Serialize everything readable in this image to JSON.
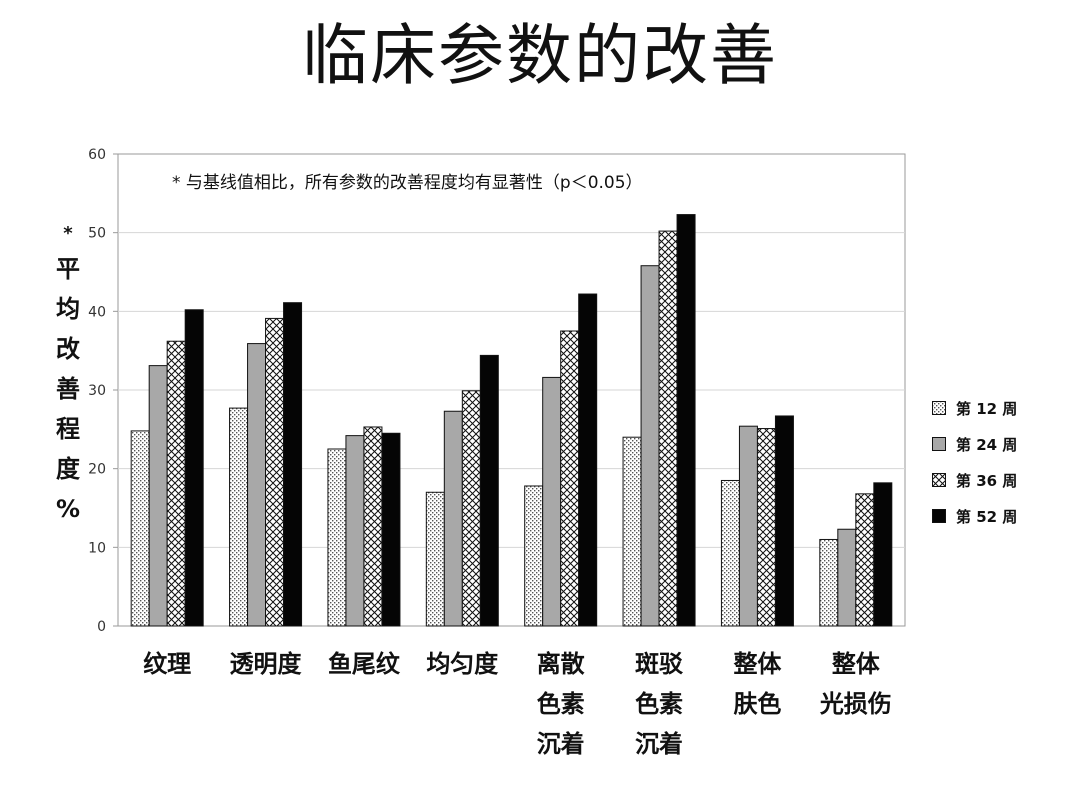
{
  "page_title": "临床参数的改善",
  "note": "* 与基线值相比，所有参数的改善程度均有显著性（p＜0.05）",
  "ylabel_star": "*",
  "ylabel_chars": [
    "平",
    "均",
    "改",
    "善",
    "程",
    "度",
    "%"
  ],
  "chart_data": {
    "type": "bar",
    "title": "临床参数的改善",
    "ylabel": "*平均改善程度%",
    "ylim": [
      0,
      60
    ],
    "yticks": [
      0,
      10,
      20,
      30,
      40,
      50,
      60
    ],
    "grid": true,
    "legend_position": "right",
    "categories": [
      [
        "纹理"
      ],
      [
        "透明度"
      ],
      [
        "鱼尾纹"
      ],
      [
        "均匀度"
      ],
      [
        "离散",
        "色素",
        "沉着"
      ],
      [
        "斑驳",
        "色素",
        "沉着"
      ],
      [
        "整体",
        "肤色"
      ],
      [
        "整体",
        "光损伤"
      ]
    ],
    "series": [
      {
        "name": "第 12 周",
        "fill": "dotted",
        "values": [
          24.8,
          27.7,
          22.5,
          17.0,
          17.8,
          24.0,
          18.5,
          11.0
        ]
      },
      {
        "name": "第 24 周",
        "fill": "gray",
        "values": [
          33.1,
          35.9,
          24.2,
          27.3,
          31.6,
          45.8,
          25.4,
          12.3
        ]
      },
      {
        "name": "第 36 周",
        "fill": "hatched",
        "values": [
          36.2,
          39.1,
          25.3,
          29.9,
          37.5,
          50.2,
          25.1,
          16.8
        ]
      },
      {
        "name": "第 52 周",
        "fill": "black",
        "values": [
          40.2,
          41.1,
          24.5,
          34.4,
          42.2,
          52.3,
          26.7,
          18.2
        ]
      }
    ]
  },
  "colors": {
    "gray_fill": "#a8a8a8",
    "black_fill": "#050505",
    "dot_fill": "#bdbdbd",
    "grid": "#d6d6d6",
    "axis": "#9a9a9a"
  }
}
